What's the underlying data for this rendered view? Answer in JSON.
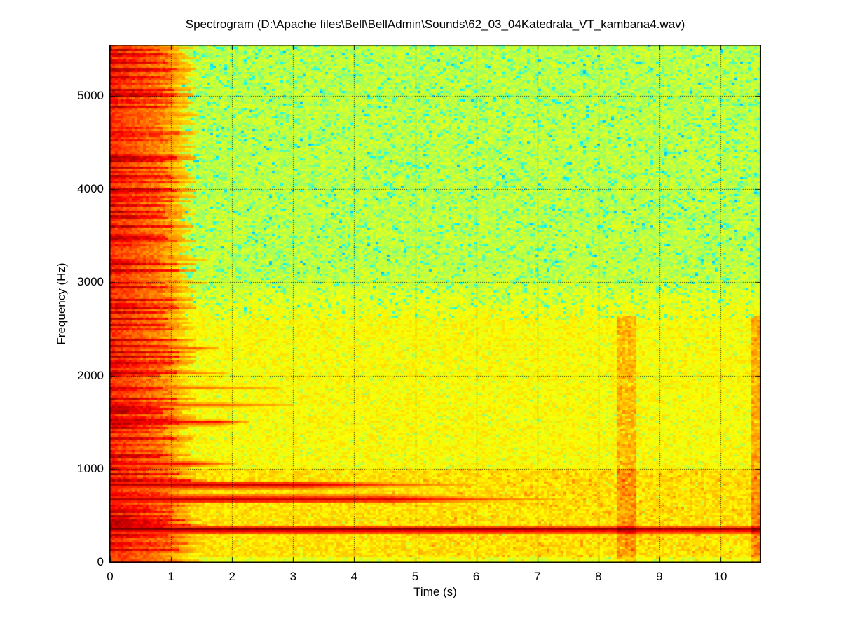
{
  "page": {
    "background_color": "#ffffff",
    "axis_color": "#000000",
    "text_color": "#000000"
  },
  "chart_data": {
    "type": "heatmap",
    "subtype": "spectrogram",
    "title": "Spectrogram (D:\\Apache files\\Bell\\BellAdmin\\Sounds\\62_03_04Katedrala_VT_kambana4.wav)",
    "xlabel": "Time (s)",
    "ylabel": "Frequency (Hz)",
    "xlim": [
      0,
      10.66
    ],
    "ylim": [
      0,
      5545
    ],
    "xticks": [
      "0",
      "1",
      "2",
      "3",
      "4",
      "5",
      "6",
      "7",
      "8",
      "9",
      "10"
    ],
    "xtick_values": [
      0,
      1,
      2,
      3,
      4,
      5,
      6,
      7,
      8,
      9,
      10
    ],
    "yticks": [
      "0",
      "1000",
      "2000",
      "3000",
      "4000",
      "5000"
    ],
    "ytick_values": [
      0,
      1000,
      2000,
      3000,
      4000,
      5000
    ],
    "colormap": "jet",
    "grid": "on",
    "grid_style": "dotted",
    "grid_color": "#000000",
    "legend": "none",
    "background_levels": {
      "low_band_below_1000hz": 0.655,
      "mid_band_1000_2600hz": 0.625,
      "high_band_above_3100hz": 0.565,
      "note": "jet colormap values 0..1; 0.625=yellow, 0.75=orange, 0.875=red, 1.0=dark red, 0.55=yellow-green, 0.38=cyan"
    },
    "attack_transient": {
      "t_start": 0,
      "t_end": 0.95,
      "t_end_below_1000hz": 1.1,
      "freq_range_hz": [
        0,
        5545
      ],
      "description": "broadband red bell-strike band at left edge with horizontal streak texture"
    },
    "partials": [
      {
        "freq_hz": 353,
        "strong_until_s": 10.66,
        "fade_until_s": 10.66,
        "peak": 1.0
      },
      {
        "freq_hz": 563,
        "strong_until_s": 0.65,
        "fade_until_s": 0.9,
        "peak": 0.92
      },
      {
        "freq_hz": 676,
        "strong_until_s": 4.6,
        "fade_until_s": 7.4,
        "peak": 0.95
      },
      {
        "freq_hz": 833,
        "strong_until_s": 3.2,
        "fade_until_s": 6.0,
        "peak": 0.95
      },
      {
        "freq_hz": 1059,
        "strong_until_s": 1.3,
        "fade_until_s": 2.1,
        "peak": 0.9
      },
      {
        "freq_hz": 1500,
        "strong_until_s": 1.8,
        "fade_until_s": 2.3,
        "peak": 0.9
      },
      {
        "freq_hz": 1690,
        "strong_until_s": 1.9,
        "fade_until_s": 3.0,
        "peak": 0.82
      },
      {
        "freq_hz": 1877,
        "strong_until_s": 1.6,
        "fade_until_s": 2.8,
        "peak": 0.8
      },
      {
        "freq_hz": 2030,
        "strong_until_s": 1.5,
        "fade_until_s": 1.9,
        "peak": 0.78
      },
      {
        "freq_hz": 2290,
        "strong_until_s": 1.45,
        "fade_until_s": 1.8,
        "peak": 0.82
      },
      {
        "freq_hz": 2560,
        "strong_until_s": 1.0,
        "fade_until_s": 1.3,
        "peak": 0.72
      },
      {
        "freq_hz": 3000,
        "strong_until_s": 1.2,
        "fade_until_s": 1.6,
        "peak": 0.72
      },
      {
        "freq_hz": 3240,
        "strong_until_s": 1.3,
        "fade_until_s": 1.6,
        "peak": 0.74
      },
      {
        "freq_hz": 3550,
        "strong_until_s": 1.0,
        "fade_until_s": 1.3,
        "peak": 0.7
      },
      {
        "freq_hz": 3800,
        "strong_until_s": 0.9,
        "fade_until_s": 1.2,
        "peak": 0.7
      },
      {
        "freq_hz": 4450,
        "strong_until_s": 1.2,
        "fade_until_s": 1.4,
        "peak": 0.74
      },
      {
        "freq_hz": 4805,
        "strong_until_s": 1.25,
        "fade_until_s": 1.45,
        "peak": 0.76
      },
      {
        "freq_hz": 5315,
        "strong_until_s": 1.1,
        "fade_until_s": 1.3,
        "peak": 0.72
      }
    ],
    "vertical_streaks": [
      {
        "t_s": 8.45,
        "half_width_s": 0.15,
        "freq_max_hz": 2650,
        "boost": 0.07
      },
      {
        "t_s": 10.6,
        "half_width_s": 0.1,
        "freq_max_hz": 2650,
        "boost": 0.08
      }
    ]
  }
}
